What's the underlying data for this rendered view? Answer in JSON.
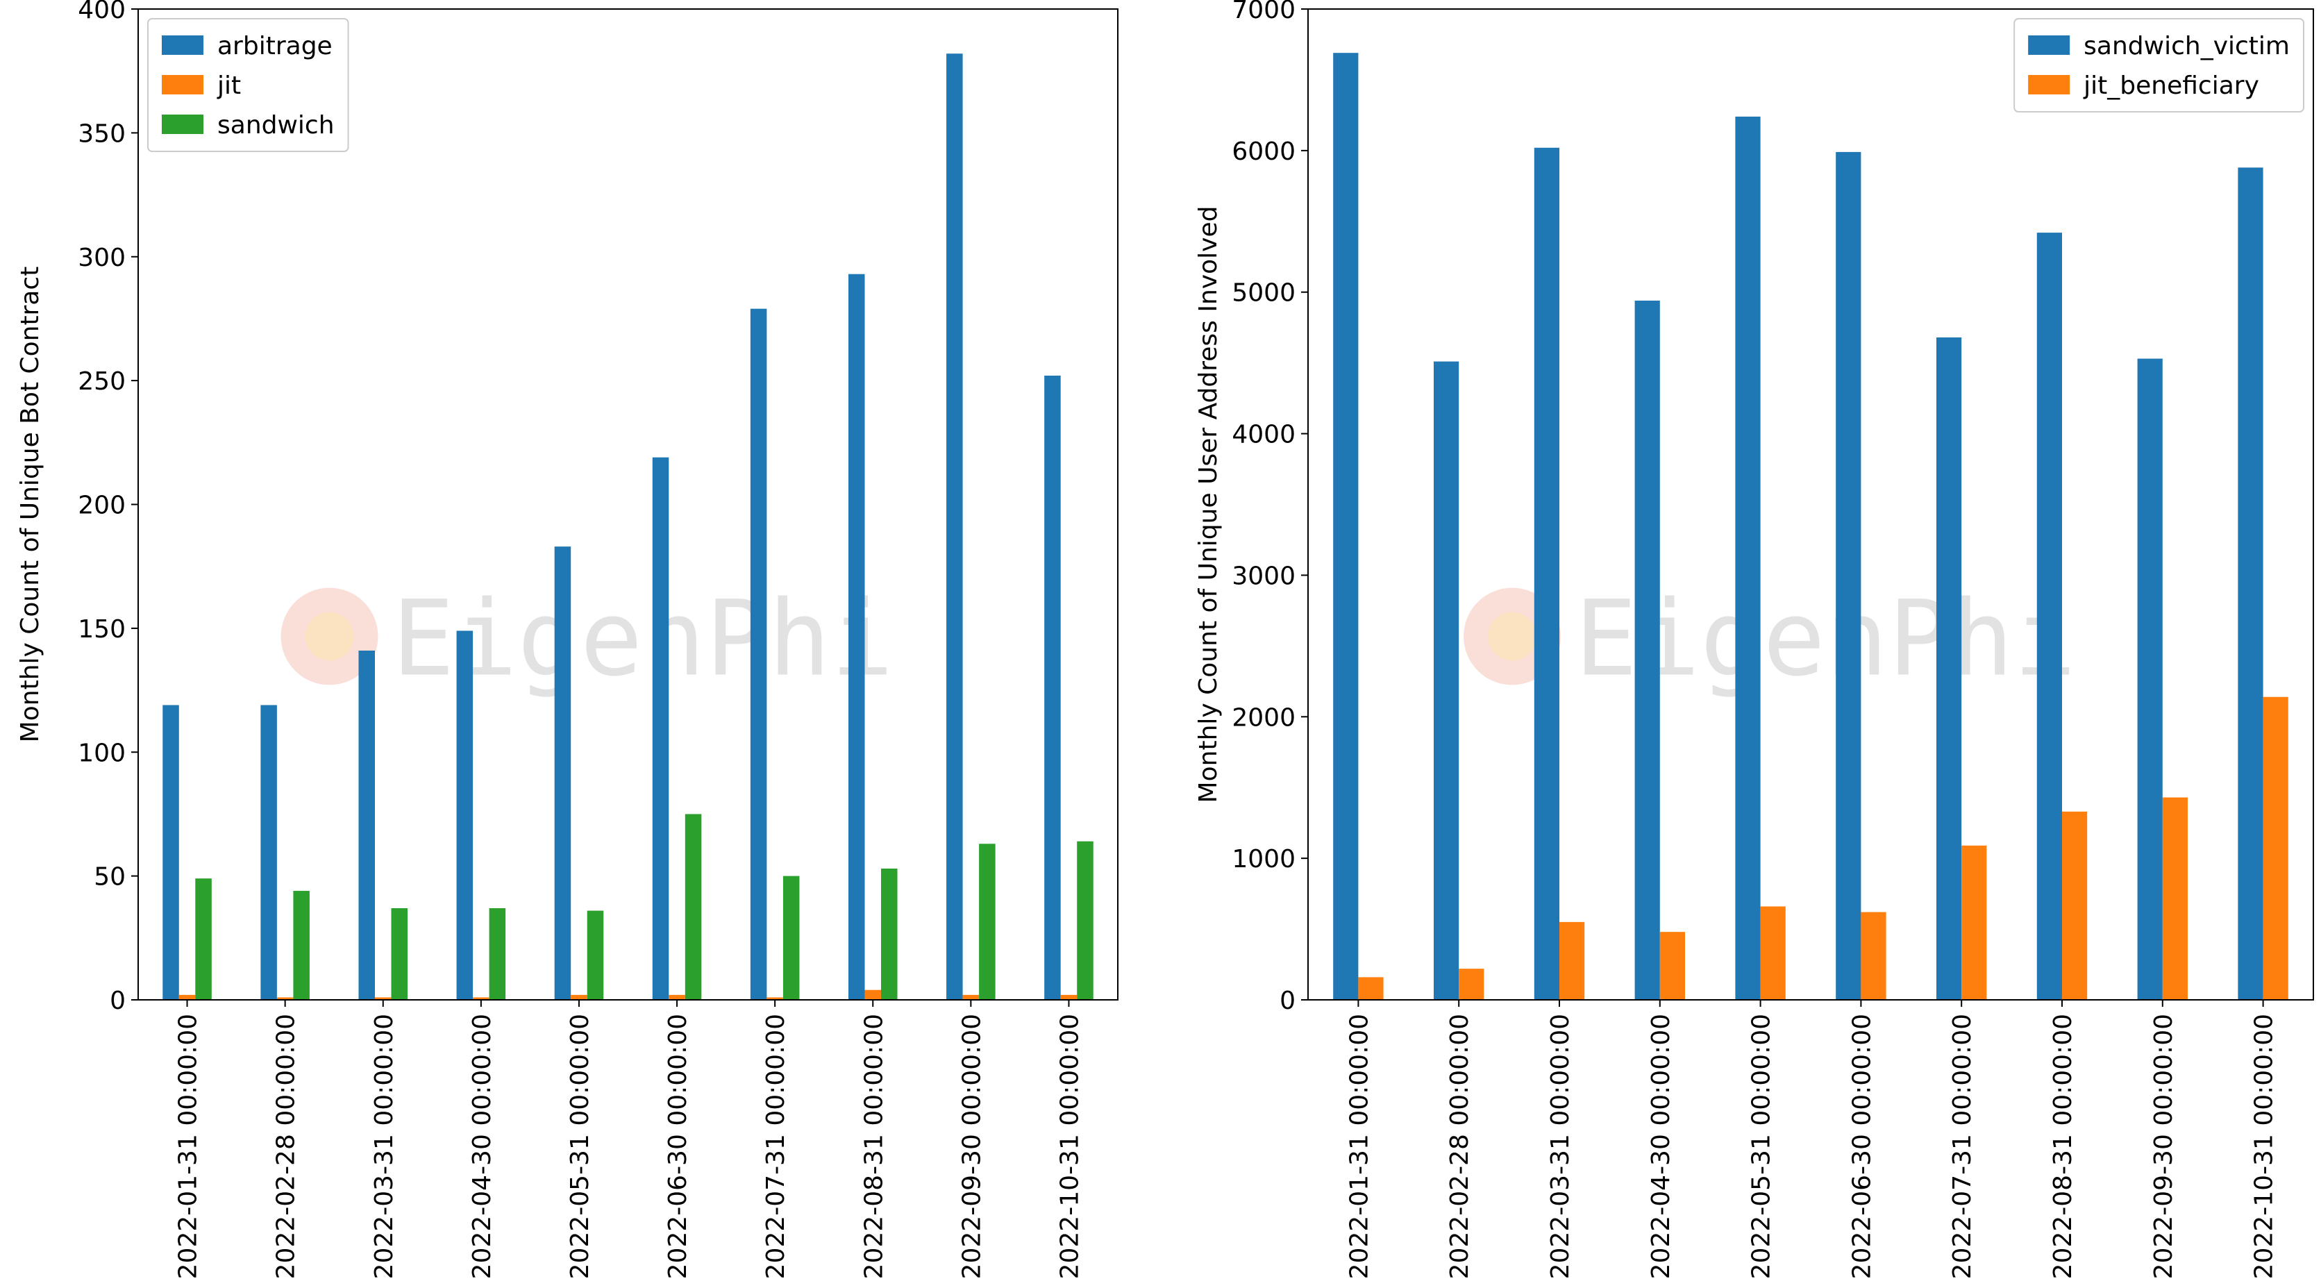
{
  "chart_data": [
    {
      "type": "bar",
      "ylabel": "Monthly Count of Unique Bot Contract",
      "watermark": "EigenPhi",
      "categories": [
        "2022-01-31 00:00:00",
        "2022-02-28 00:00:00",
        "2022-03-31 00:00:00",
        "2022-04-30 00:00:00",
        "2022-05-31 00:00:00",
        "2022-06-30 00:00:00",
        "2022-07-31 00:00:00",
        "2022-08-31 00:00:00",
        "2022-09-30 00:00:00",
        "2022-10-31 00:00:00"
      ],
      "series": [
        {
          "name": "arbitrage",
          "color": "#1f77b4",
          "values": [
            119,
            119,
            141,
            149,
            183,
            219,
            279,
            293,
            382,
            252
          ]
        },
        {
          "name": "jit",
          "color": "#ff7f0e",
          "values": [
            2,
            1,
            1,
            1,
            2,
            2,
            1,
            4,
            2,
            2
          ]
        },
        {
          "name": "sandwich",
          "color": "#2ca02c",
          "values": [
            49,
            44,
            37,
            37,
            36,
            75,
            50,
            53,
            63,
            64
          ]
        }
      ],
      "ylim": [
        0,
        400
      ],
      "yticks": [
        0,
        50,
        100,
        150,
        200,
        250,
        300,
        350,
        400
      ],
      "legend": "upper-left"
    },
    {
      "type": "bar",
      "ylabel": "Monthly Count of Unique User Address Involved",
      "watermark": "EigenPhi",
      "categories": [
        "2022-01-31 00:00:00",
        "2022-02-28 00:00:00",
        "2022-03-31 00:00:00",
        "2022-04-30 00:00:00",
        "2022-05-31 00:00:00",
        "2022-06-30 00:00:00",
        "2022-07-31 00:00:00",
        "2022-08-31 00:00:00",
        "2022-09-30 00:00:00",
        "2022-10-31 00:00:00"
      ],
      "series": [
        {
          "name": "sandwich_victim",
          "color": "#1f77b4",
          "values": [
            6690,
            4510,
            6020,
            4940,
            6240,
            5990,
            4680,
            5420,
            4530,
            5880
          ]
        },
        {
          "name": "jit_beneficiary",
          "color": "#ff7f0e",
          "values": [
            160,
            220,
            550,
            480,
            660,
            620,
            1090,
            1330,
            1430,
            2140
          ]
        }
      ],
      "ylim": [
        0,
        7000
      ],
      "yticks": [
        0,
        1000,
        2000,
        3000,
        4000,
        5000,
        6000,
        7000
      ],
      "legend": "upper-right"
    }
  ]
}
